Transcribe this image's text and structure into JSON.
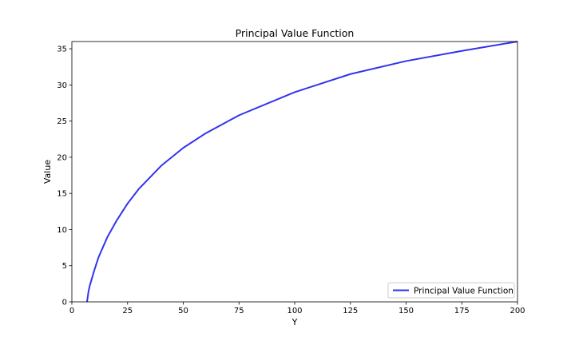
{
  "chart_data": {
    "type": "line",
    "title": "Principal Value Function",
    "xlabel": "Y",
    "ylabel": "Value",
    "xlim": [
      0,
      200
    ],
    "ylim": [
      0,
      36
    ],
    "x_ticks": [
      0,
      25,
      50,
      75,
      100,
      125,
      150,
      175,
      200
    ],
    "y_ticks": [
      0,
      5,
      10,
      15,
      20,
      25,
      30,
      35
    ],
    "grid": false,
    "legend_position": "lower-right",
    "series": [
      {
        "name": "Principal Value Function",
        "color": "#3333ee",
        "x": [
          6.8,
          7.5,
          8.0,
          10,
          12,
          14,
          16,
          20,
          25,
          30,
          40,
          50,
          60,
          75,
          100,
          125,
          150,
          175,
          200
        ],
        "y": [
          0,
          1.5,
          2.2,
          4.3,
          6.2,
          7.6,
          9.0,
          11.2,
          13.6,
          15.6,
          18.8,
          21.3,
          23.3,
          25.8,
          29.0,
          31.5,
          33.3,
          34.7,
          36.0
        ]
      }
    ]
  }
}
